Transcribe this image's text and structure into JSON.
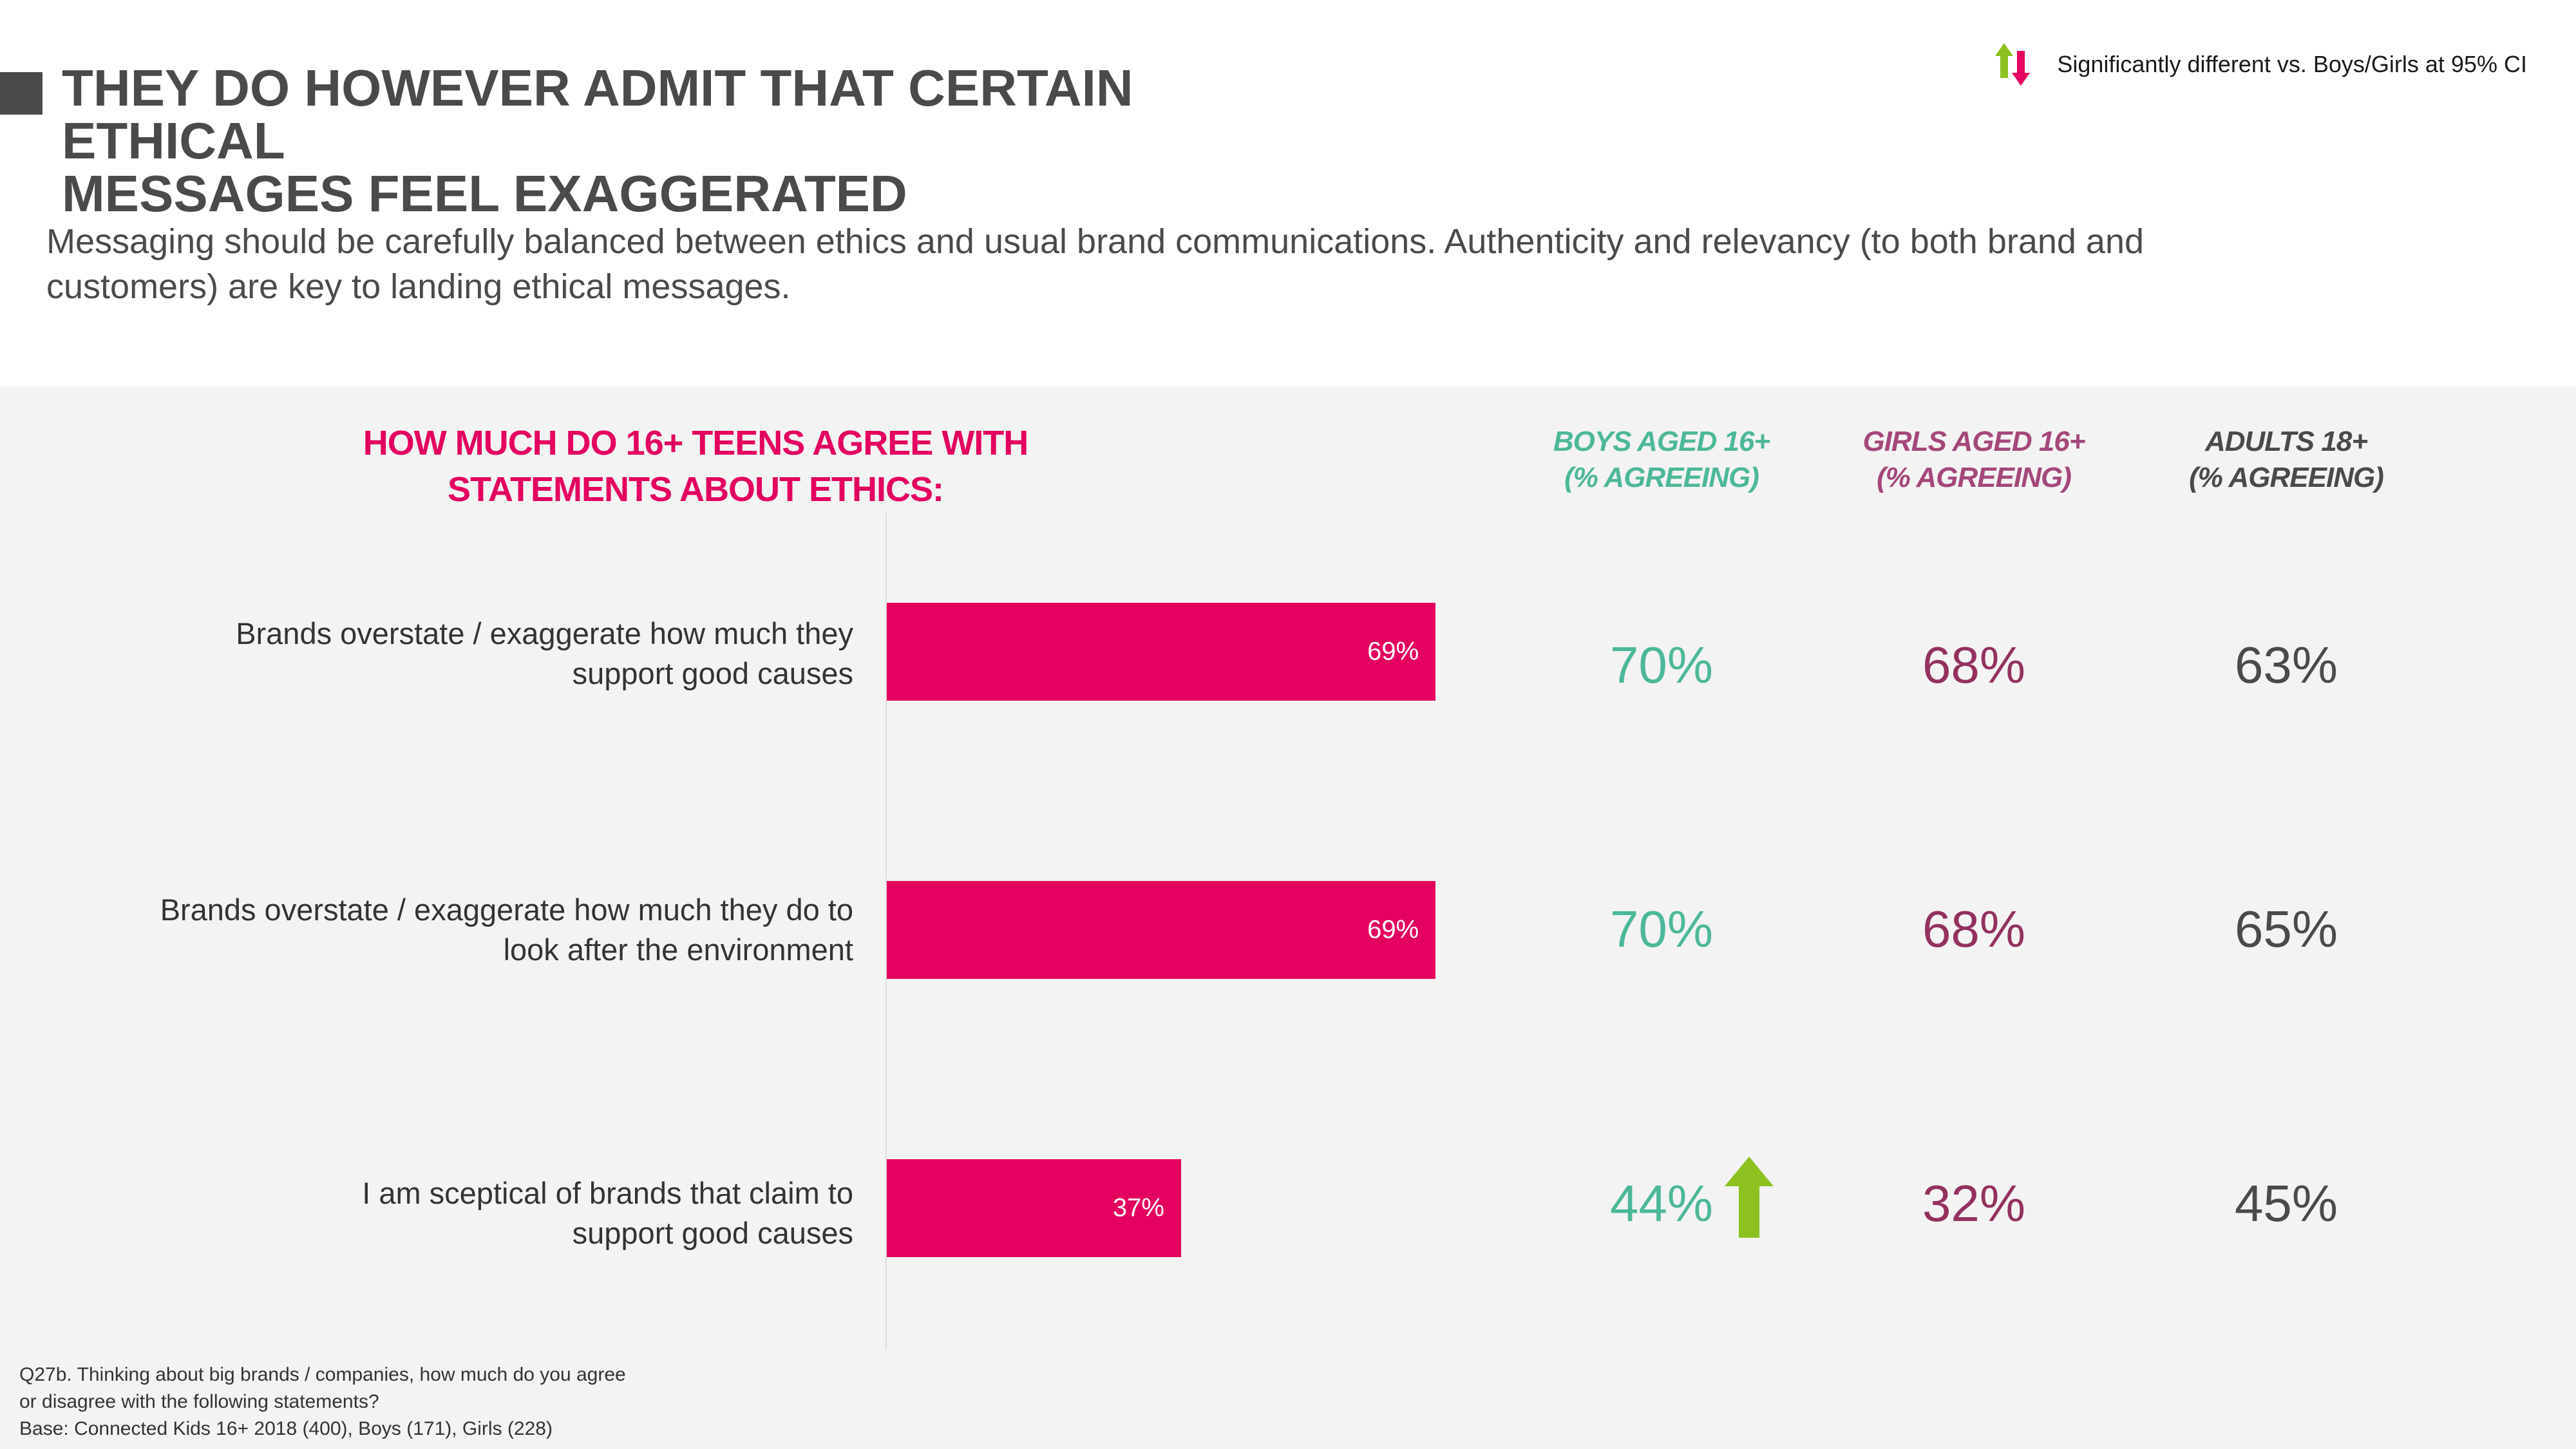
{
  "title": {
    "line1": "THEY DO HOWEVER ADMIT THAT CERTAIN ETHICAL",
    "line2": "MESSAGES FEEL EXAGGERATED"
  },
  "legend": {
    "icon": "up-down-arrows-icon",
    "text": "Significantly different vs. Boys/Girls at 95% CI"
  },
  "subtitle": {
    "line1": "Messaging should be carefully balanced between ethics and usual brand communications. Authenticity and relevancy (to both brand and",
    "line2": "customers) are key to landing ethical messages."
  },
  "question": {
    "line1": "HOW MUCH DO 16+ TEENS AGREE WITH",
    "line2": "STATEMENTS ABOUT ETHICS:"
  },
  "columns": {
    "boys": {
      "line1": "BOYS AGED 16+",
      "line2": "(% AGREEING)"
    },
    "girls": {
      "line1": "GIRLS AGED 16+",
      "line2": "(% AGREEING)"
    },
    "adults": {
      "line1": "ADULTS 18+",
      "line2": "(% AGREEING)"
    }
  },
  "colors": {
    "bar": "#e3005e",
    "boys": "#4cb899",
    "girls": "#93315f",
    "adults": "#4a4a48",
    "sig_up": "#8cc11f",
    "sig_down": "#e3005e"
  },
  "chart_data": {
    "type": "bar",
    "orientation": "horizontal",
    "title": "HOW MUCH DO 16+ TEENS AGREE WITH STATEMENTS ABOUT ETHICS:",
    "xlim": [
      0,
      100
    ],
    "unit": "%",
    "categories": [
      "Brands overstate / exaggerate how much they support good causes",
      "Brands overstate / exaggerate how much they do to look after the environment",
      "I am sceptical of brands that claim to support good causes"
    ],
    "series": [
      {
        "name": "16+ teens (% agreeing)",
        "values": [
          69,
          69,
          37
        ]
      }
    ]
  },
  "rows": [
    {
      "label_line1": "Brands overstate / exaggerate how much they",
      "label_line2": "support good causes",
      "bar_label": "69%",
      "boys": "70%",
      "girls": "68%",
      "adults": "63%"
    },
    {
      "label_line1": "Brands overstate / exaggerate how much they do to",
      "label_line2": "look after the environment",
      "bar_label": "69%",
      "boys": "70%",
      "girls": "68%",
      "adults": "65%"
    },
    {
      "label_line1": "I am sceptical of brands that claim to",
      "label_line2": "support good causes",
      "bar_label": "37%",
      "boys": "44%",
      "girls": "32%",
      "adults": "45%",
      "boys_significance": "up"
    }
  ],
  "footnote": {
    "line1": "Q27b. Thinking about big brands / companies, how much do you agree",
    "line2": "or disagree with the following statements?",
    "line3": "Base: Connected Kids 16+ 2018 (400), Boys (171), Girls (228)"
  }
}
